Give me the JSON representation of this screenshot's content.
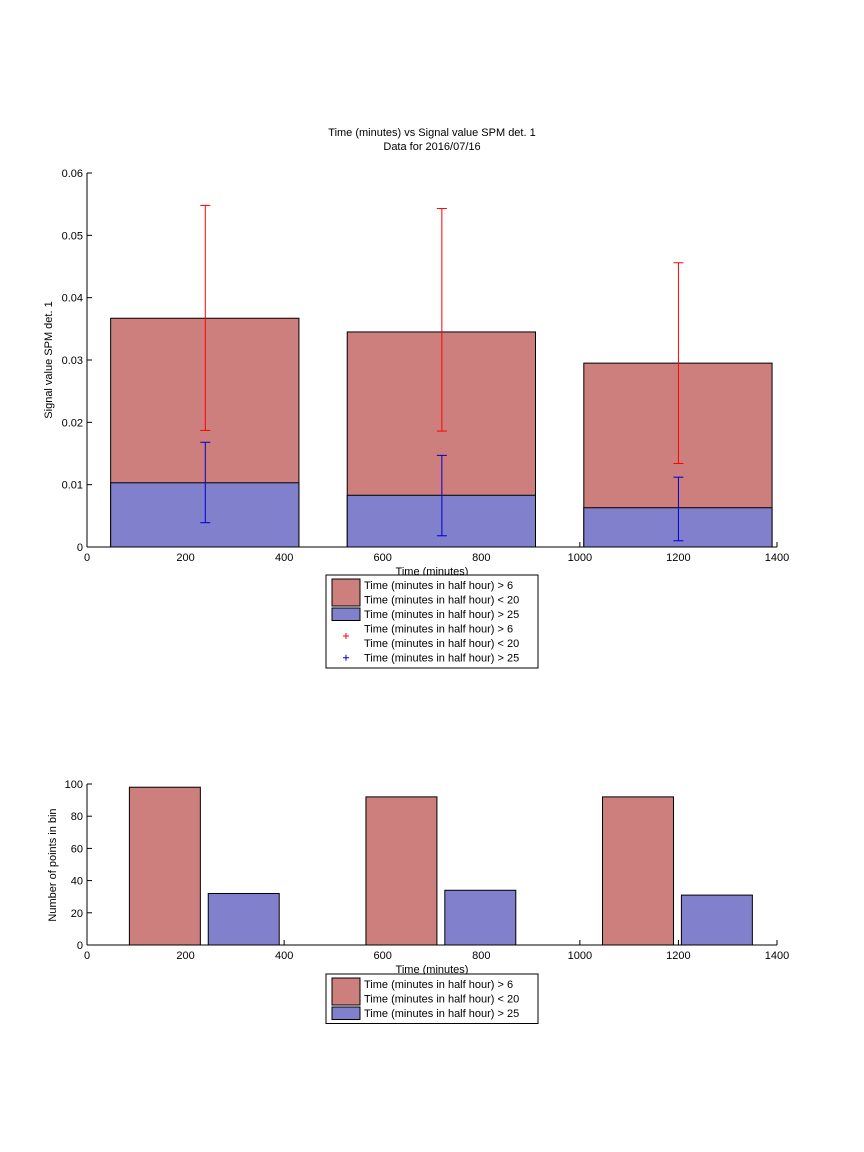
{
  "chart_data": [
    {
      "type": "bar",
      "title": "Time (minutes) vs Signal value SPM det. 1",
      "subtitle": "Data for 2016/07/16",
      "xlabel": "Time (minutes)",
      "ylabel": "Signal value SPM det. 1",
      "xlim": [
        0,
        1400
      ],
      "ylim": [
        0,
        0.06
      ],
      "xticks": [
        "0",
        "200",
        "400",
        "600",
        "800",
        "1000",
        "1200",
        "1400"
      ],
      "yticks": [
        "0",
        "0.01",
        "0.02",
        "0.03",
        "0.04",
        "0.05",
        "0.06"
      ],
      "legend_position": "bottom-center",
      "series": [
        {
          "name": "Time (minutes in half hour) > 6\nTime (minutes in half hour) < 20",
          "color": "#cc7f7c",
          "bars": [
            {
              "x_start": 48,
              "x_end": 430,
              "value": 0.0367
            },
            {
              "x_start": 528,
              "x_end": 910,
              "value": 0.0345
            },
            {
              "x_start": 1008,
              "x_end": 1390,
              "value": 0.0295
            }
          ]
        },
        {
          "name": "Time (minutes in half hour) > 25",
          "color": "#8080cc",
          "bars": [
            {
              "x_start": 48,
              "x_end": 430,
              "value": 0.0103
            },
            {
              "x_start": 528,
              "x_end": 910,
              "value": 0.0083
            },
            {
              "x_start": 1008,
              "x_end": 1390,
              "value": 0.0063
            }
          ]
        }
      ],
      "errorbars": [
        {
          "name": "Time (minutes in half hour) > 6\nTime (minutes in half hour) < 20",
          "color": "#ff0000",
          "points": [
            {
              "x": 240,
              "low": 0.0187,
              "high": 0.0548
            },
            {
              "x": 720,
              "low": 0.0186,
              "high": 0.0543
            },
            {
              "x": 1200,
              "low": 0.0134,
              "high": 0.0456
            }
          ]
        },
        {
          "name": "Time (minutes in half hour) > 25",
          "color": "#0000cc",
          "points": [
            {
              "x": 240,
              "low": 0.0039,
              "high": 0.0168
            },
            {
              "x": 720,
              "low": 0.0018,
              "high": 0.0147
            },
            {
              "x": 1200,
              "low": 0.001,
              "high": 0.0112
            }
          ]
        }
      ]
    },
    {
      "type": "bar",
      "xlabel": "Time (minutes)",
      "ylabel": "Number of points in bin",
      "xlim": [
        0,
        1400
      ],
      "ylim": [
        0,
        100
      ],
      "xticks": [
        "0",
        "200",
        "400",
        "600",
        "800",
        "1000",
        "1200",
        "1400"
      ],
      "yticks": [
        "0",
        "20",
        "40",
        "60",
        "80",
        "100"
      ],
      "legend_position": "bottom-center",
      "series": [
        {
          "name": "Time (minutes in half hour) > 6\nTime (minutes in half hour) < 20",
          "color": "#cc7f7c",
          "bars": [
            {
              "x_start": 86,
              "x_end": 230,
              "value": 98
            },
            {
              "x_start": 566,
              "x_end": 710,
              "value": 92
            },
            {
              "x_start": 1046,
              "x_end": 1190,
              "value": 92
            }
          ]
        },
        {
          "name": "Time (minutes in half hour) > 25",
          "color": "#8080cc",
          "bars": [
            {
              "x_start": 246,
              "x_end": 390,
              "value": 32
            },
            {
              "x_start": 726,
              "x_end": 870,
              "value": 34
            },
            {
              "x_start": 1206,
              "x_end": 1350,
              "value": 31
            }
          ]
        }
      ]
    }
  ]
}
